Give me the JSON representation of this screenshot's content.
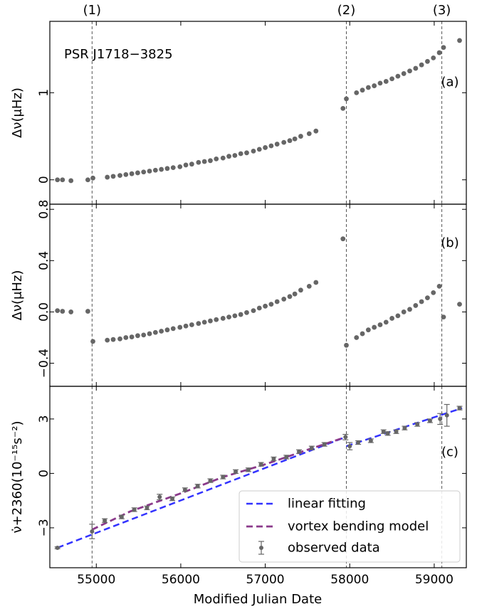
{
  "chart_data": {
    "type": "scatter",
    "xlabel": "Modified Julian Date",
    "xlim": [
      54450,
      59380
    ],
    "xticks": [
      "55000",
      "56000",
      "57000",
      "58000",
      "59000"
    ],
    "xtick_values": [
      55000,
      56000,
      57000,
      58000,
      59000
    ],
    "glitches": [
      {
        "label": "(1)",
        "mjd": 54950
      },
      {
        "label": "(2)",
        "mjd": 57960
      },
      {
        "label": "(3)",
        "mjd": 59090
      }
    ],
    "panels": [
      {
        "id": "a",
        "tag": "(a)",
        "annotation": "PSR J1718−3825",
        "ylabel": "Δν(μHz)",
        "ylim": [
          -0.28,
          1.82
        ],
        "yticks": [
          "0",
          "1"
        ],
        "ytick_values": [
          0,
          1
        ],
        "color": "#666666",
        "series": [
          {
            "name": "points",
            "x": [
              54540,
              54600,
              54700,
              54900,
              54960,
              55130,
              55200,
              55280,
              55350,
              55420,
              55490,
              55560,
              55630,
              55700,
              55770,
              55840,
              55910,
              55990,
              56060,
              56130,
              56210,
              56280,
              56350,
              56420,
              56500,
              56570,
              56640,
              56710,
              56780,
              56860,
              56930,
              57000,
              57070,
              57140,
              57220,
              57290,
              57350,
              57420,
              57520,
              57600,
              57920,
              57960,
              58080,
              58150,
              58220,
              58290,
              58360,
              58430,
              58500,
              58570,
              58640,
              58710,
              58780,
              58850,
              58920,
              58990,
              59060,
              59110,
              59300
            ],
            "y": [
              0.0,
              0.0,
              -0.01,
              0.0,
              0.02,
              0.03,
              0.04,
              0.05,
              0.06,
              0.07,
              0.08,
              0.09,
              0.1,
              0.11,
              0.12,
              0.13,
              0.14,
              0.15,
              0.17,
              0.18,
              0.2,
              0.21,
              0.22,
              0.24,
              0.25,
              0.27,
              0.28,
              0.3,
              0.31,
              0.33,
              0.35,
              0.37,
              0.39,
              0.41,
              0.43,
              0.45,
              0.47,
              0.5,
              0.53,
              0.56,
              0.82,
              0.93,
              1.0,
              1.03,
              1.06,
              1.08,
              1.11,
              1.13,
              1.16,
              1.19,
              1.22,
              1.25,
              1.28,
              1.32,
              1.36,
              1.4,
              1.46,
              1.52,
              1.6
            ]
          }
        ]
      },
      {
        "id": "b",
        "tag": "(b)",
        "ylabel": "Δν(μHz)",
        "ylim": [
          -0.58,
          0.84
        ],
        "yticks": [
          "−0.4",
          "0.0",
          "0.4",
          "0.8"
        ],
        "ytick_values": [
          -0.4,
          0.0,
          0.4,
          0.8
        ],
        "color": "#666666",
        "series": [
          {
            "name": "points",
            "x": [
              54540,
              54600,
              54700,
              54900,
              54960,
              55130,
              55200,
              55280,
              55350,
              55420,
              55490,
              55560,
              55630,
              55700,
              55770,
              55840,
              55910,
              55990,
              56060,
              56130,
              56210,
              56280,
              56350,
              56420,
              56500,
              56570,
              56640,
              56710,
              56780,
              56860,
              56930,
              57000,
              57070,
              57140,
              57220,
              57290,
              57350,
              57420,
              57520,
              57600,
              57920,
              57960,
              58080,
              58150,
              58220,
              58290,
              58360,
              58430,
              58500,
              58570,
              58640,
              58710,
              58780,
              58850,
              58920,
              58990,
              59060,
              59110,
              59300
            ],
            "y": [
              0.01,
              0.005,
              0.0,
              0.005,
              -0.23,
              -0.22,
              -0.215,
              -0.21,
              -0.2,
              -0.195,
              -0.185,
              -0.18,
              -0.17,
              -0.16,
              -0.15,
              -0.14,
              -0.13,
              -0.12,
              -0.11,
              -0.1,
              -0.09,
              -0.08,
              -0.07,
              -0.06,
              -0.05,
              -0.04,
              -0.03,
              -0.02,
              -0.005,
              0.01,
              0.03,
              0.045,
              0.06,
              0.08,
              0.1,
              0.12,
              0.14,
              0.17,
              0.2,
              0.23,
              0.57,
              -0.26,
              -0.2,
              -0.17,
              -0.14,
              -0.12,
              -0.1,
              -0.08,
              -0.05,
              -0.03,
              0.0,
              0.02,
              0.05,
              0.08,
              0.11,
              0.15,
              0.2,
              -0.04,
              0.06
            ]
          }
        ]
      },
      {
        "id": "c",
        "tag": "(c)",
        "ylabel": "ν̇+2360(10⁻¹⁵s⁻²)",
        "ylim": [
          -5.2,
          4.8
        ],
        "yticks": [
          "−3",
          "0",
          "3"
        ],
        "ytick_values": [
          -3,
          0,
          3
        ],
        "color": "#666666",
        "observed": {
          "name": "observed data",
          "x": [
            54540,
            54950,
            55100,
            55300,
            55450,
            55600,
            55750,
            55900,
            56050,
            56200,
            56350,
            56500,
            56650,
            56800,
            56950,
            57100,
            57250,
            57400,
            57550,
            57700,
            57950,
            58000,
            58100,
            58250,
            58400,
            58450,
            58550,
            58650,
            58800,
            58950,
            59070,
            59150,
            59300
          ],
          "y": [
            -4.1,
            -3.2,
            -2.6,
            -2.4,
            -2.0,
            -1.9,
            -1.3,
            -1.4,
            -0.9,
            -0.7,
            -0.4,
            -0.2,
            0.1,
            0.2,
            0.5,
            0.8,
            0.9,
            1.2,
            1.4,
            1.6,
            2.0,
            1.5,
            1.7,
            1.8,
            2.3,
            2.2,
            2.3,
            2.5,
            2.7,
            2.9,
            3.0,
            3.2,
            3.6
          ],
          "yerr": [
            0.05,
            0.4,
            0.1,
            0.1,
            0.1,
            0.1,
            0.15,
            0.1,
            0.1,
            0.1,
            0.1,
            0.1,
            0.1,
            0.1,
            0.1,
            0.1,
            0.1,
            0.1,
            0.1,
            0.1,
            0.15,
            0.2,
            0.1,
            0.1,
            0.1,
            0.1,
            0.1,
            0.1,
            0.1,
            0.1,
            0.3,
            0.6,
            0.1
          ]
        },
        "linear_fit": {
          "name": "linear fitting",
          "color": "#3333ff",
          "segments": [
            {
              "x": [
                54540,
                57950
              ],
              "y": [
                -4.1,
                2.0
              ]
            },
            {
              "x": [
                57960,
                59330
              ],
              "y": [
                1.5,
                3.6
              ]
            }
          ]
        },
        "vortex_model": {
          "name": "vortex bending model",
          "color": "#8b3a8b",
          "x": [
            54950,
            55400,
            56000,
            56500,
            57000,
            57500,
            57950
          ],
          "y": [
            -3.1,
            -2.1,
            -1.1,
            -0.2,
            0.5,
            1.3,
            2.0
          ]
        }
      }
    ],
    "legend": {
      "placement": "lower-right",
      "entries": [
        "linear fitting",
        "vortex bending model",
        "observed data"
      ]
    }
  }
}
